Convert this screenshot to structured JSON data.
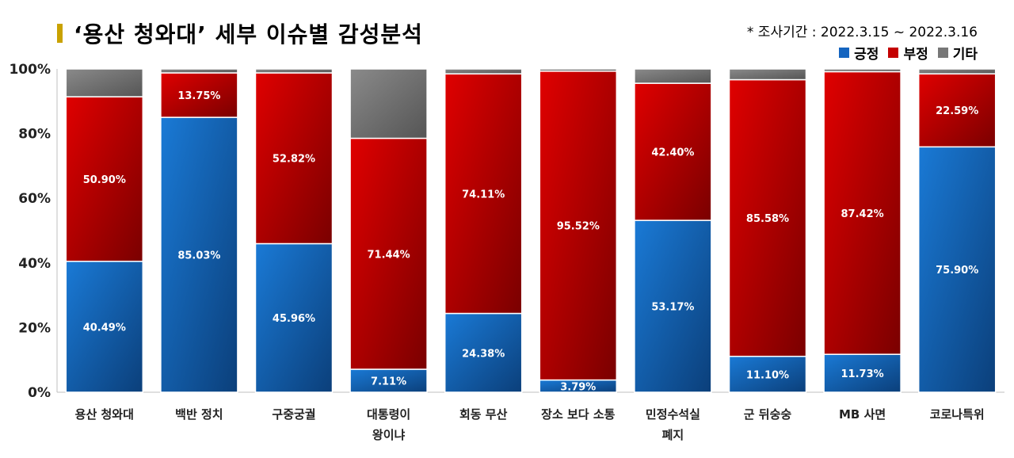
{
  "header": {
    "title": "‘용산 청와대’ 세부 이슈별 감성분석",
    "period": "* 조사기간 : 2022.3.15 ~ 2022.3.16"
  },
  "legend": [
    {
      "name": "긍정",
      "color": "#1565c0"
    },
    {
      "name": "부정",
      "color": "#c40000"
    },
    {
      "name": "기타",
      "color": "#777777"
    }
  ],
  "chart_data": {
    "type": "bar",
    "stacked": true,
    "percent_stacked": true,
    "categories": [
      "용산 청와대",
      "백반 정치",
      "구중궁궐",
      "대통령이\n왕이냐",
      "회동 무산",
      "장소 보다 소통",
      "민정수석실\n폐지",
      "군 뒤숭숭",
      "MB 사면",
      "코로나특위"
    ],
    "series": [
      {
        "name": "긍정",
        "color": "#1565c0",
        "values": [
          40.49,
          85.03,
          45.96,
          7.11,
          24.38,
          3.79,
          53.17,
          11.1,
          11.73,
          75.9
        ],
        "labels": [
          "40.49%",
          "85.03%",
          "45.96%",
          "7.11%",
          "24.38%",
          "3.79%",
          "53.17%",
          "11.10%",
          "11.73%",
          "75.90%"
        ]
      },
      {
        "name": "부정",
        "color": "#c40000",
        "values": [
          50.9,
          13.75,
          52.82,
          71.44,
          74.11,
          95.52,
          42.4,
          85.58,
          87.42,
          22.59
        ],
        "labels": [
          "50.90%",
          "13.75%",
          "52.82%",
          "71.44%",
          "74.11%",
          "95.52%",
          "42.40%",
          "85.58%",
          "87.42%",
          "22.59%"
        ]
      },
      {
        "name": "기타",
        "color": "#777777",
        "values": [
          8.61,
          1.22,
          1.22,
          21.45,
          1.51,
          0.69,
          4.43,
          3.32,
          0.85,
          1.51
        ],
        "labels": []
      }
    ],
    "yticks": [
      "0%",
      "20%",
      "40%",
      "60%",
      "80%",
      "100%"
    ],
    "ylim": [
      0,
      100
    ],
    "grid": false,
    "legend_position": "top-right"
  }
}
